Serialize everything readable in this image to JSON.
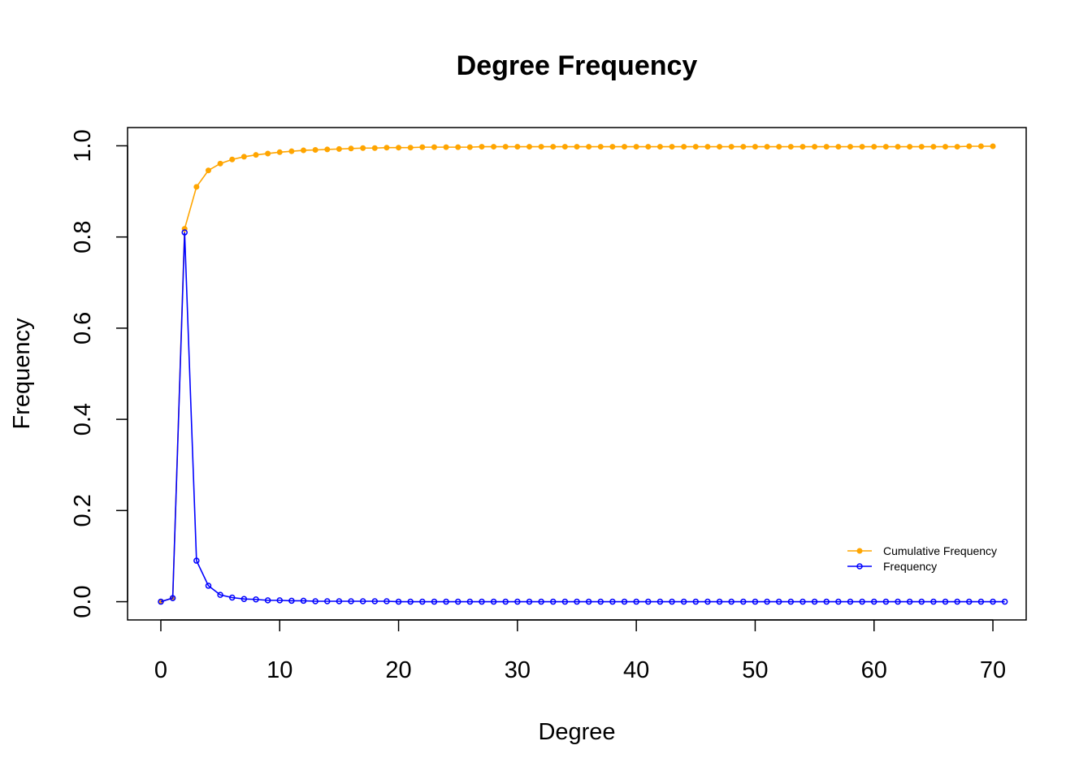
{
  "chart_data": {
    "type": "line",
    "title": "Degree Frequency",
    "xlabel": "Degree",
    "ylabel": "Frequency",
    "xlim": [
      -2.8,
      72.8
    ],
    "ylim": [
      -0.04,
      1.04
    ],
    "x_ticks": [
      0,
      10,
      20,
      30,
      40,
      50,
      60,
      70
    ],
    "x_tick_labels": [
      "0",
      "10",
      "20",
      "30",
      "40",
      "50",
      "60",
      "70"
    ],
    "y_ticks": [
      0,
      0.2,
      0.4,
      0.6,
      0.8,
      1.0
    ],
    "y_tick_labels": [
      "0.0",
      "0.2",
      "0.4",
      "0.6",
      "0.8",
      "1.0"
    ],
    "grid": false,
    "legend_position": "bottom-right",
    "series": [
      {
        "name": "Cumulative Frequency",
        "color": "#FFA500",
        "marker": "filled-circle",
        "x": [
          0,
          1,
          2,
          3,
          4,
          5,
          6,
          7,
          8,
          9,
          10,
          11,
          12,
          13,
          14,
          15,
          16,
          17,
          18,
          19,
          20,
          21,
          22,
          23,
          24,
          25,
          26,
          27,
          28,
          29,
          30,
          31,
          32,
          33,
          34,
          35,
          36,
          37,
          38,
          39,
          40,
          41,
          42,
          43,
          44,
          45,
          46,
          47,
          48,
          49,
          50,
          51,
          52,
          53,
          54,
          55,
          56,
          57,
          58,
          59,
          60,
          61,
          62,
          63,
          64,
          65,
          66,
          67,
          68,
          69,
          70
        ],
        "values": [
          0.0,
          0.008,
          0.818,
          0.91,
          0.946,
          0.961,
          0.97,
          0.976,
          0.98,
          0.983,
          0.986,
          0.988,
          0.99,
          0.991,
          0.992,
          0.993,
          0.994,
          0.995,
          0.995,
          0.996,
          0.996,
          0.996,
          0.997,
          0.997,
          0.997,
          0.997,
          0.997,
          0.998,
          0.998,
          0.998,
          0.998,
          0.998,
          0.998,
          0.998,
          0.998,
          0.998,
          0.998,
          0.998,
          0.998,
          0.998,
          0.998,
          0.998,
          0.998,
          0.998,
          0.998,
          0.998,
          0.998,
          0.998,
          0.998,
          0.998,
          0.998,
          0.998,
          0.998,
          0.998,
          0.998,
          0.998,
          0.998,
          0.998,
          0.998,
          0.998,
          0.998,
          0.998,
          0.998,
          0.998,
          0.998,
          0.998,
          0.998,
          0.998,
          0.999,
          0.999,
          0.999
        ]
      },
      {
        "name": "Frequency",
        "color": "#0000FF",
        "marker": "open-circle",
        "x": [
          0,
          1,
          2,
          3,
          4,
          5,
          6,
          7,
          8,
          9,
          10,
          11,
          12,
          13,
          14,
          15,
          16,
          17,
          18,
          19,
          20,
          21,
          22,
          23,
          24,
          25,
          26,
          27,
          28,
          29,
          30,
          31,
          32,
          33,
          34,
          35,
          36,
          37,
          38,
          39,
          40,
          41,
          42,
          43,
          44,
          45,
          46,
          47,
          48,
          49,
          50,
          51,
          52,
          53,
          54,
          55,
          56,
          57,
          58,
          59,
          60,
          61,
          62,
          63,
          64,
          65,
          66,
          67,
          68,
          69,
          70,
          71
        ],
        "values": [
          0.0,
          0.008,
          0.81,
          0.09,
          0.035,
          0.015,
          0.009,
          0.006,
          0.005,
          0.003,
          0.003,
          0.002,
          0.002,
          0.001,
          0.001,
          0.001,
          0.001,
          0.001,
          0.001,
          0.001,
          0.0,
          0.0,
          0.0,
          0.0,
          0.0,
          0.0,
          0.0,
          0.0,
          0.0,
          0.0,
          0.0,
          0.0,
          0.0,
          0.0,
          0.0,
          0.0,
          0.0,
          0.0,
          0.0,
          0.0,
          0.0,
          0.0,
          0.0,
          0.0,
          0.0,
          0.0,
          0.0,
          0.0,
          0.0,
          0.0,
          0.0,
          0.0,
          0.0,
          0.0,
          0.0,
          0.0,
          0.0,
          0.0,
          0.0,
          0.0,
          0.0,
          0.0,
          0.0,
          0.0,
          0.0,
          0.0,
          0.0,
          0.0,
          0.0,
          0.0,
          0.0,
          0.0
        ]
      }
    ]
  }
}
